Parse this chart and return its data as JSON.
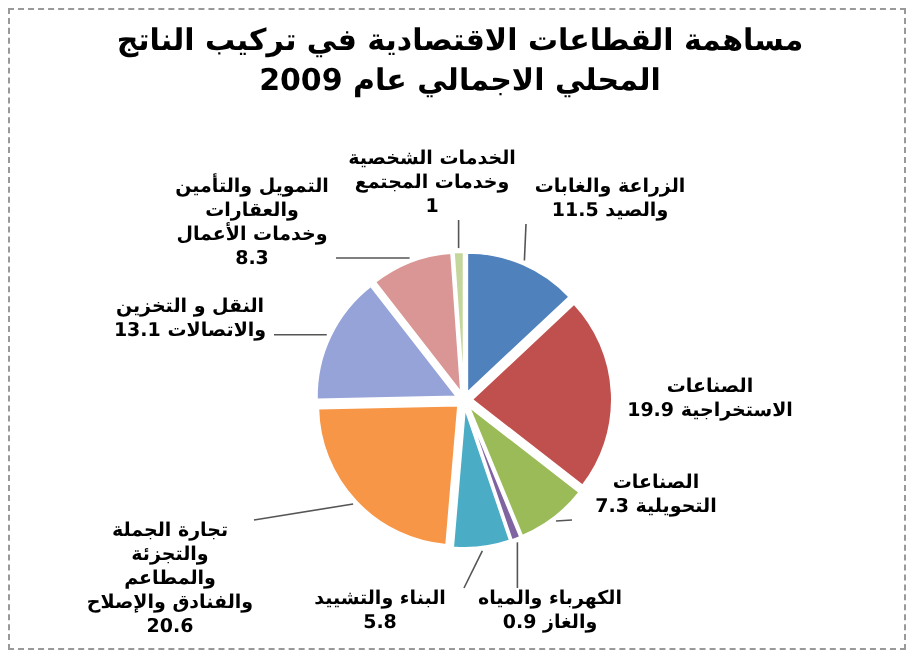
{
  "chart_data": {
    "type": "pie",
    "title": "مساهمة القطاعات الاقتصادية في تركيب الناتج المحلي الاجمالي عام 2009",
    "categories": [
      "الزراعة والغابات والصيد",
      "الصناعات الاستخراجية",
      "الصناعات التحويلية",
      "الكهرباء والمياه والغاز",
      "البناء والتشييد",
      "تجارة الجملة والتجزئة والمطاعم والفنادق والإصلاح",
      "النقل و التخزين والاتصالات",
      "التمويل والتأمين والعقارات وخدمات الأعمال",
      "الخدمات الشخصية وخدمات المجتمع"
    ],
    "values": [
      11.5,
      19.9,
      7.3,
      0.9,
      5.8,
      20.6,
      13.1,
      8.3,
      1
    ],
    "colors": [
      "#4f81bd",
      "#c0504d",
      "#9bbb59",
      "#8064a2",
      "#4bacc6",
      "#f79646",
      "#95a3d8",
      "#d99694",
      "#c3d69b"
    ],
    "data_labels": true
  }
}
